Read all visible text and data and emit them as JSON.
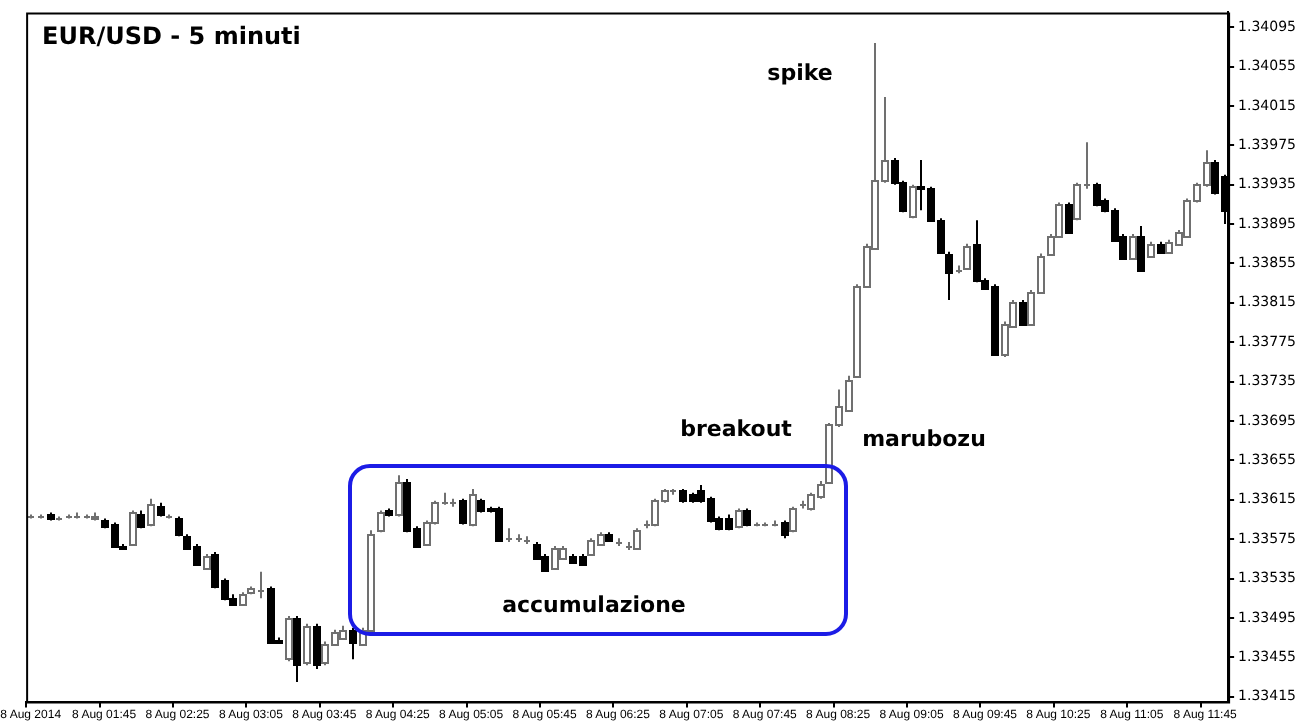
{
  "chart_data": {
    "type": "candlestick",
    "title": "EUR/USD - 5 minuti",
    "categories": [
      "8 Aug 2014",
      null,
      null,
      null,
      null,
      null,
      null,
      null,
      "8 Aug 01:45",
      null,
      null,
      null,
      null,
      null,
      null,
      null,
      "8 Aug 02:25",
      null,
      null,
      null,
      null,
      null,
      null,
      null,
      "8 Aug 03:05",
      null,
      null,
      null,
      null,
      null,
      null,
      null,
      "8 Aug 03:45",
      null,
      null,
      null,
      null,
      null,
      null,
      null,
      "8 Aug 04:25",
      null,
      null,
      null,
      null,
      null,
      null,
      null,
      "8 Aug 05:05",
      null,
      null,
      null,
      null,
      null,
      null,
      null,
      "8 Aug 05:45",
      null,
      null,
      null,
      null,
      null,
      null,
      null,
      "8 Aug 06:25",
      null,
      null,
      null,
      null,
      null,
      null,
      null,
      "8 Aug 07:05",
      null,
      null,
      null,
      null,
      null,
      null,
      null,
      "8 Aug 07:45",
      null,
      null,
      null,
      null,
      null,
      null,
      null,
      "8 Aug 08:25",
      null,
      null,
      null,
      null,
      null,
      null,
      null,
      "8 Aug 09:05",
      null,
      null,
      null,
      null,
      null,
      null,
      null,
      "8 Aug 09:45",
      null,
      null,
      null,
      null,
      null,
      null,
      null,
      "8 Aug 10:25",
      null,
      null,
      null,
      null,
      null,
      null,
      null,
      "8 Aug 11:05",
      null,
      null,
      null,
      null,
      null,
      null,
      null,
      "8 Aug 11:45",
      null,
      null
    ],
    "ohlc": [
      [
        1.33598,
        1.336,
        1.33596,
        1.33598
      ],
      [
        1.33598,
        1.336,
        1.33596,
        1.33598
      ],
      [
        1.336,
        1.33602,
        1.33594,
        1.33596
      ],
      [
        1.33596,
        1.33598,
        1.33594,
        1.33596
      ],
      [
        1.33598,
        1.336,
        1.33596,
        1.33598
      ],
      [
        1.33598,
        1.33602,
        1.33596,
        1.33598
      ],
      [
        1.33598,
        1.336,
        1.33596,
        1.33598
      ],
      [
        1.33596,
        1.33602,
        1.33594,
        1.33598
      ],
      [
        1.33594,
        1.33596,
        1.33586,
        1.33588
      ],
      [
        1.3359,
        1.33592,
        1.33566,
        1.33568
      ],
      [
        1.33568,
        1.3357,
        1.33564,
        1.33566
      ],
      [
        1.3357,
        1.33604,
        1.33568,
        1.33602
      ],
      [
        1.336,
        1.33604,
        1.33586,
        1.33588
      ],
      [
        1.3359,
        1.33616,
        1.33588,
        1.3361
      ],
      [
        1.33608,
        1.33612,
        1.33598,
        1.336
      ],
      [
        1.33598,
        1.336,
        1.33596,
        1.33598
      ],
      [
        1.33596,
        1.33598,
        1.33578,
        1.3358
      ],
      [
        1.33578,
        1.3358,
        1.33564,
        1.33566
      ],
      [
        1.33568,
        1.3357,
        1.33548,
        1.3355
      ],
      [
        1.33546,
        1.3356,
        1.33544,
        1.33558
      ],
      [
        1.3356,
        1.33562,
        1.33525,
        1.33527
      ],
      [
        1.33533,
        1.33535,
        1.33513,
        1.33515
      ],
      [
        1.33515,
        1.33519,
        1.33507,
        1.33509
      ],
      [
        1.33509,
        1.33521,
        1.33507,
        1.33519
      ],
      [
        1.33521,
        1.33527,
        1.33519,
        1.33525
      ],
      [
        1.33523,
        1.33542,
        1.33515,
        1.33523
      ],
      [
        1.33525,
        1.33527,
        1.33469,
        1.33471
      ],
      [
        1.33473,
        1.33475,
        1.33469,
        1.33471
      ],
      [
        1.33455,
        1.33497,
        1.33451,
        1.33495
      ],
      [
        1.33495,
        1.33497,
        1.3343,
        1.33449
      ],
      [
        1.33451,
        1.33489,
        1.33447,
        1.33487
      ],
      [
        1.33487,
        1.33489,
        1.33443,
        1.33449
      ],
      [
        1.33451,
        1.33471,
        1.33447,
        1.33469
      ],
      [
        1.33469,
        1.33483,
        1.33467,
        1.33481
      ],
      [
        1.33475,
        1.33487,
        1.33473,
        1.33483
      ],
      [
        1.33483,
        1.33485,
        1.33453,
        1.33471
      ],
      [
        1.33469,
        1.33485,
        1.33467,
        1.33483
      ],
      [
        1.33483,
        1.33584,
        1.33481,
        1.3358
      ],
      [
        1.33584,
        1.33604,
        1.33582,
        1.33602
      ],
      [
        1.33604,
        1.33606,
        1.33598,
        1.336
      ],
      [
        1.336,
        1.3364,
        1.33598,
        1.33634
      ],
      [
        1.33634,
        1.33636,
        1.33582,
        1.33584
      ],
      [
        1.33586,
        1.33588,
        1.33566,
        1.33568
      ],
      [
        1.3357,
        1.33594,
        1.33568,
        1.33592
      ],
      [
        1.33592,
        1.33614,
        1.3359,
        1.33612
      ],
      [
        1.33612,
        1.33622,
        1.3361,
        1.33612
      ],
      [
        1.33612,
        1.33616,
        1.33608,
        1.33612
      ],
      [
        1.33614,
        1.33616,
        1.3359,
        1.33592
      ],
      [
        1.3359,
        1.33626,
        1.33588,
        1.3362
      ],
      [
        1.33614,
        1.33616,
        1.33602,
        1.33604
      ],
      [
        1.33606,
        1.33608,
        1.33602,
        1.33604
      ],
      [
        1.33606,
        1.33608,
        1.33572,
        1.33574
      ],
      [
        1.33576,
        1.33586,
        1.33572,
        1.33576
      ],
      [
        1.33576,
        1.3358,
        1.33572,
        1.33576
      ],
      [
        1.33574,
        1.33578,
        1.3357,
        1.33574
      ],
      [
        1.3357,
        1.33572,
        1.33554,
        1.33556
      ],
      [
        1.33558,
        1.3356,
        1.33542,
        1.33544
      ],
      [
        1.33546,
        1.33568,
        1.33544,
        1.33566
      ],
      [
        1.33556,
        1.33568,
        1.33554,
        1.33566
      ],
      [
        1.33558,
        1.3356,
        1.3355,
        1.33552
      ],
      [
        1.33558,
        1.3356,
        1.33548,
        1.3355
      ],
      [
        1.3356,
        1.33576,
        1.33558,
        1.33574
      ],
      [
        1.3357,
        1.33582,
        1.33568,
        1.3358
      ],
      [
        1.3358,
        1.33582,
        1.33572,
        1.33574
      ],
      [
        1.33572,
        1.33576,
        1.33568,
        1.33572
      ],
      [
        1.33568,
        1.33572,
        1.33564,
        1.33568
      ],
      [
        1.33566,
        1.33586,
        1.33564,
        1.33584
      ],
      [
        1.3359,
        1.33594,
        1.33586,
        1.3359
      ],
      [
        1.3359,
        1.33616,
        1.33588,
        1.33614
      ],
      [
        1.33614,
        1.33626,
        1.33612,
        1.33624
      ],
      [
        1.33624,
        1.33626,
        1.3362,
        1.33624
      ],
      [
        1.33624,
        1.33626,
        1.33612,
        1.33614
      ],
      [
        1.3362,
        1.33622,
        1.33612,
        1.33614
      ],
      [
        1.33624,
        1.3363,
        1.33612,
        1.33614
      ],
      [
        1.33616,
        1.33618,
        1.33592,
        1.33594
      ],
      [
        1.33596,
        1.33598,
        1.33584,
        1.33586
      ],
      [
        1.33596,
        1.336,
        1.33584,
        1.33586
      ],
      [
        1.33588,
        1.33606,
        1.33586,
        1.33604
      ],
      [
        1.33604,
        1.33606,
        1.33588,
        1.3359
      ],
      [
        1.3359,
        1.33592,
        1.33588,
        1.3359
      ],
      [
        1.3359,
        1.33592,
        1.33588,
        1.3359
      ],
      [
        1.3359,
        1.33594,
        1.33588,
        1.3359
      ],
      [
        1.33592,
        1.33594,
        1.33576,
        1.3358
      ],
      [
        1.33584,
        1.33608,
        1.33582,
        1.33606
      ],
      [
        1.3361,
        1.33614,
        1.33606,
        1.3361
      ],
      [
        1.33606,
        1.33622,
        1.33604,
        1.3362
      ],
      [
        1.33618,
        1.33634,
        1.33616,
        1.33632
      ],
      [
        1.33634,
        1.33693,
        1.33632,
        1.33691
      ],
      [
        1.33691,
        1.33727,
        1.33689,
        1.33711
      ],
      [
        1.33707,
        1.33741,
        1.33705,
        1.33737
      ],
      [
        1.33741,
        1.33834,
        1.33739,
        1.33832
      ],
      [
        1.33832,
        1.33875,
        1.3383,
        1.33873
      ],
      [
        1.33871,
        1.34079,
        1.33869,
        1.33939
      ],
      [
        1.33939,
        1.34024,
        1.33937,
        1.3396
      ],
      [
        1.3396,
        1.33962,
        1.33935,
        1.33937
      ],
      [
        1.33937,
        1.33939,
        1.33907,
        1.33909
      ],
      [
        1.33903,
        1.33935,
        1.33901,
        1.33933
      ],
      [
        1.33933,
        1.3396,
        1.33909,
        1.33931
      ],
      [
        1.33931,
        1.33933,
        1.33897,
        1.33899
      ],
      [
        1.33899,
        1.33901,
        1.33865,
        1.33867
      ],
      [
        1.33865,
        1.33867,
        1.33818,
        1.33847
      ],
      [
        1.33849,
        1.33853,
        1.33845,
        1.33849
      ],
      [
        1.33851,
        1.33875,
        1.33849,
        1.33873
      ],
      [
        1.33875,
        1.33899,
        1.33836,
        1.33838
      ],
      [
        1.33838,
        1.3384,
        1.33828,
        1.3383
      ],
      [
        1.33832,
        1.33834,
        1.33762,
        1.33764
      ],
      [
        1.33764,
        1.33796,
        1.3376,
        1.33794
      ],
      [
        1.33792,
        1.33818,
        1.3379,
        1.33816
      ],
      [
        1.33816,
        1.33818,
        1.33792,
        1.33794
      ],
      [
        1.33794,
        1.33828,
        1.33792,
        1.33826
      ],
      [
        1.33826,
        1.33865,
        1.33824,
        1.33863
      ],
      [
        1.33865,
        1.33885,
        1.33863,
        1.33883
      ],
      [
        1.33883,
        1.33917,
        1.33881,
        1.33915
      ],
      [
        1.33915,
        1.33917,
        1.33885,
        1.33887
      ],
      [
        1.33901,
        1.33937,
        1.33899,
        1.33935
      ],
      [
        1.33935,
        1.33978,
        1.33931,
        1.33935
      ],
      [
        1.33935,
        1.33937,
        1.33913,
        1.33915
      ],
      [
        1.33919,
        1.33921,
        1.33907,
        1.33909
      ],
      [
        1.33909,
        1.33911,
        1.33877,
        1.33879
      ],
      [
        1.33883,
        1.33885,
        1.33859,
        1.33861
      ],
      [
        1.33861,
        1.33885,
        1.33859,
        1.33883
      ],
      [
        1.33883,
        1.33893,
        1.33847,
        1.33849
      ],
      [
        1.33863,
        1.33877,
        1.33861,
        1.33875
      ],
      [
        1.33875,
        1.33877,
        1.33865,
        1.33867
      ],
      [
        1.33867,
        1.33879,
        1.33865,
        1.33877
      ],
      [
        1.33875,
        1.33889,
        1.33873,
        1.33887
      ],
      [
        1.33883,
        1.33921,
        1.33881,
        1.33919
      ],
      [
        1.33919,
        1.33937,
        1.33917,
        1.33935
      ],
      [
        1.33935,
        1.3397,
        1.33933,
        1.33958
      ],
      [
        1.33958,
        1.3396,
        1.33925,
        1.33927
      ],
      [
        1.33943,
        1.33945,
        1.33895,
        1.33909
      ]
    ],
    "ylim": [
      1.3341,
      1.3411
    ],
    "yticks": [
      1.33415,
      1.33455,
      1.33495,
      1.33535,
      1.33575,
      1.33615,
      1.33655,
      1.33695,
      1.33735,
      1.33775,
      1.33815,
      1.33855,
      1.33895,
      1.33935,
      1.33975,
      1.34015,
      1.34055,
      1.34095
    ],
    "annotations": [
      "spike",
      "breakout",
      "marubozu",
      "accumulazione"
    ]
  }
}
